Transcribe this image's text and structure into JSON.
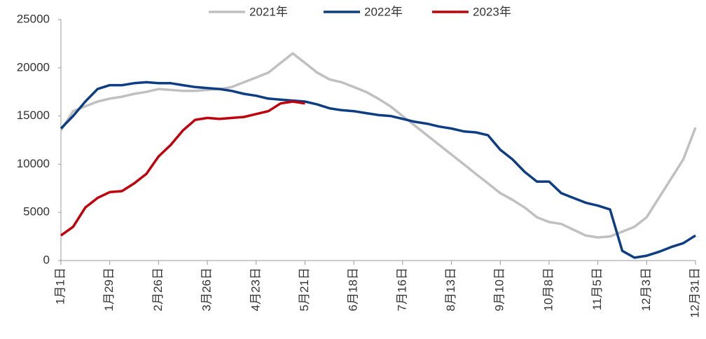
{
  "chart_data": {
    "type": "line",
    "categories": [
      "1月1日",
      null,
      null,
      null,
      "1月29日",
      null,
      null,
      null,
      "2月26日",
      null,
      null,
      null,
      "3月26日",
      null,
      null,
      null,
      "4月23日",
      null,
      null,
      null,
      "5月21日",
      null,
      null,
      null,
      "6月18日",
      null,
      null,
      null,
      "7月16日",
      null,
      null,
      null,
      "8月13日",
      null,
      null,
      null,
      "9月10日",
      null,
      null,
      null,
      "10月8日",
      null,
      null,
      null,
      "11月5日",
      null,
      null,
      null,
      "12月3日",
      null,
      null,
      null,
      "12月31日"
    ],
    "series": [
      {
        "name": "2021年",
        "color": "#c0c0c0",
        "values": [
          13500,
          15500,
          16000,
          16500,
          16800,
          17000,
          17300,
          17500,
          17800,
          17700,
          17600,
          17600,
          17700,
          17800,
          18000,
          18500,
          19000,
          19500,
          20500,
          21500,
          20500,
          19500,
          18800,
          18500,
          18000,
          17500,
          16800,
          16000,
          15000,
          14000,
          13000,
          12000,
          11000,
          10000,
          9000,
          8000,
          7000,
          6300,
          5500,
          4500,
          4000,
          3800,
          3200,
          2600,
          2400,
          2500,
          3000,
          3500,
          4500,
          6500,
          8500,
          10500,
          13800
        ]
      },
      {
        "name": "2022年",
        "color": "#0d3d83",
        "values": [
          13700,
          15000,
          16500,
          17800,
          18200,
          18200,
          18400,
          18500,
          18400,
          18400,
          18200,
          18000,
          17900,
          17800,
          17600,
          17300,
          17100,
          16800,
          16700,
          16600,
          16500,
          16200,
          15800,
          15600,
          15500,
          15300,
          15100,
          15000,
          14700,
          14400,
          14200,
          13900,
          13700,
          13400,
          13300,
          13000,
          11500,
          10500,
          9200,
          8200,
          8200,
          7000,
          6500,
          6000,
          5700,
          5300,
          1000,
          300,
          500,
          900,
          1400,
          1800,
          2600
        ]
      },
      {
        "name": "2023年",
        "color": "#c0000b",
        "values": [
          2600,
          3500,
          5500,
          6500,
          7100,
          7200,
          8000,
          9000,
          10800,
          12000,
          13500,
          14600,
          14800,
          14700,
          14800,
          14900,
          15200,
          15500,
          16300,
          16500,
          16300,
          null,
          null,
          null,
          null,
          null,
          null,
          null,
          null,
          null,
          null,
          null,
          null,
          null,
          null,
          null,
          null,
          null,
          null,
          null,
          null,
          null,
          null,
          null,
          null,
          null,
          null,
          null,
          null,
          null,
          null,
          null,
          null
        ]
      }
    ],
    "ylim": [
      0,
      25000
    ],
    "yticks": [
      0,
      5000,
      10000,
      15000,
      20000,
      25000
    ],
    "grid": false,
    "legend": "top"
  }
}
